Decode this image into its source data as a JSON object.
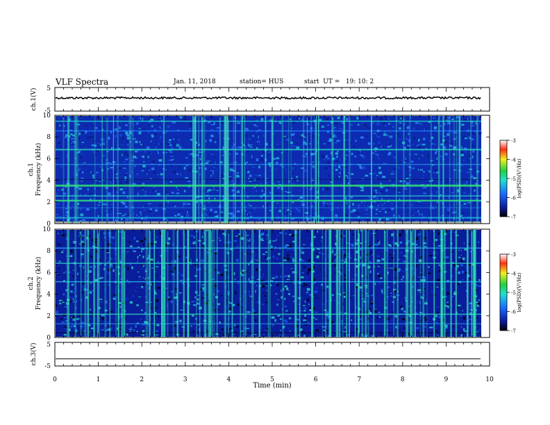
{
  "header": {
    "title": "VLF Spectra",
    "date": "Jan. 11, 2018",
    "station": "station= HUS",
    "start": "start  UT =   19: 10: 2"
  },
  "chart_data": [
    {
      "type": "line",
      "name": "ch1-waveform",
      "ylabel": "ch.1(V)",
      "ylim": [
        -5,
        5
      ],
      "y_ticks": [
        "5",
        "-5"
      ],
      "xlim": [
        0,
        10
      ],
      "description_level": 0.8
    },
    {
      "type": "heatmap",
      "name": "ch1-spectrogram",
      "ylabel_line1": "ch.1",
      "ylabel_line2": "Frequency (kHz)",
      "ylim": [
        0,
        10
      ],
      "y_ticks": [
        "0",
        "2",
        "4",
        "6",
        "8",
        "10"
      ],
      "xlim": [
        0,
        10
      ],
      "colorbar": {
        "label": "log(PSD)(V²/Hz)",
        "range": [
          -7,
          -3
        ],
        "ticks": [
          "-3",
          "-4",
          "-5",
          "-6",
          "-7"
        ]
      }
    },
    {
      "type": "heatmap",
      "name": "ch2-spectrogram",
      "ylabel_line1": "ch.2",
      "ylabel_line2": "Frequency (kHz)",
      "ylim": [
        0,
        10
      ],
      "y_ticks": [
        "0",
        "2",
        "4",
        "6",
        "8",
        "10"
      ],
      "xlim": [
        0,
        10
      ],
      "colorbar": {
        "label": "log(PSD)(V²/Hz)",
        "range": [
          -7,
          -3
        ],
        "ticks": [
          "-3",
          "-4",
          "-5",
          "-6",
          "-7"
        ]
      }
    },
    {
      "type": "line",
      "name": "ch3-waveform",
      "ylabel": "ch.3(V)",
      "ylim": [
        -5,
        5
      ],
      "y_ticks": [
        "5",
        "-5"
      ],
      "xlim": [
        0,
        10
      ],
      "level": -2,
      "xlabel": "Time  (min)",
      "x_ticks": [
        "0",
        "1",
        "2",
        "3",
        "4",
        "5",
        "6",
        "7",
        "8",
        "9",
        "10"
      ]
    }
  ]
}
